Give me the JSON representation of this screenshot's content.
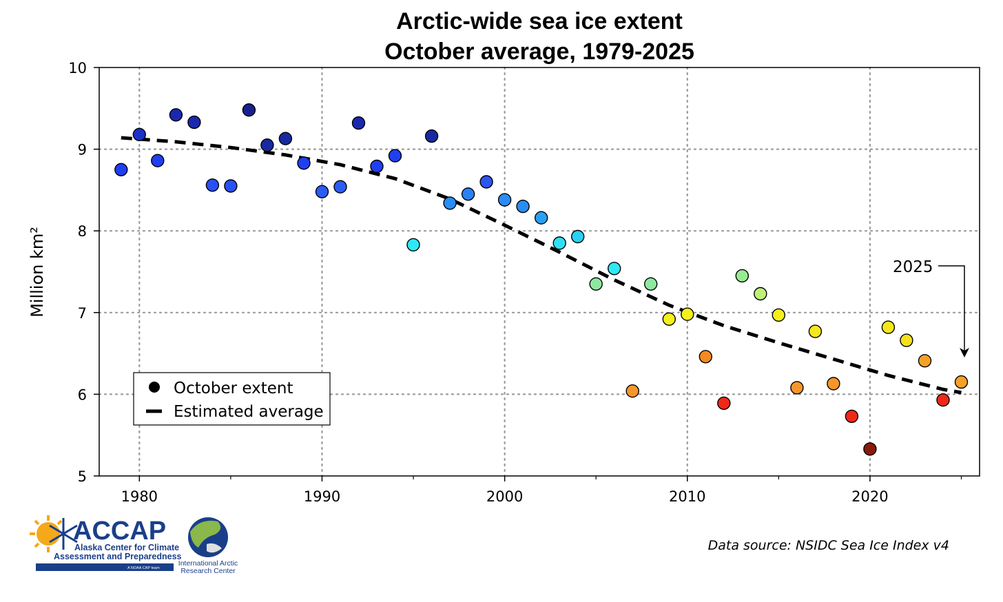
{
  "chart_data": {
    "type": "scatter",
    "title": [
      "Arctic-wide sea ice extent",
      "October average, 1979-2025"
    ],
    "xlabel": "",
    "ylabel": "Million km²",
    "xlim": [
      1977.8,
      2026
    ],
    "ylim": [
      5,
      10
    ],
    "x_ticks": [
      1980,
      1990,
      2000,
      2010,
      2020
    ],
    "y_ticks": [
      5,
      6,
      7,
      8,
      9,
      10
    ],
    "grid": "dotted",
    "legend_position": "lower-left",
    "legend": [
      {
        "label": "October extent",
        "marker": "circle"
      },
      {
        "label": "Estimated average",
        "marker": "dashed-line"
      }
    ],
    "series": [
      {
        "name": "October extent",
        "points": [
          {
            "x": 1979,
            "y": 8.75,
            "color": "#1f3ff0"
          },
          {
            "x": 1980,
            "y": 9.18,
            "color": "#1a30c8"
          },
          {
            "x": 1981,
            "y": 8.86,
            "color": "#1f3ff0"
          },
          {
            "x": 1982,
            "y": 9.42,
            "color": "#1a28b0"
          },
          {
            "x": 1983,
            "y": 9.33,
            "color": "#1a28b0"
          },
          {
            "x": 1984,
            "y": 8.56,
            "color": "#2850f5"
          },
          {
            "x": 1985,
            "y": 8.55,
            "color": "#2850f5"
          },
          {
            "x": 1986,
            "y": 9.48,
            "color": "#182090"
          },
          {
            "x": 1987,
            "y": 9.05,
            "color": "#182aa0"
          },
          {
            "x": 1988,
            "y": 9.13,
            "color": "#182aa0"
          },
          {
            "x": 1989,
            "y": 8.83,
            "color": "#1f3ff0"
          },
          {
            "x": 1990,
            "y": 8.48,
            "color": "#2a5cf5"
          },
          {
            "x": 1991,
            "y": 8.54,
            "color": "#2a5cf5"
          },
          {
            "x": 1992,
            "y": 9.32,
            "color": "#1a28b0"
          },
          {
            "x": 1993,
            "y": 8.79,
            "color": "#1f3ff0"
          },
          {
            "x": 1994,
            "y": 8.92,
            "color": "#1f3ff0"
          },
          {
            "x": 1995,
            "y": 7.83,
            "color": "#2ee8f5"
          },
          {
            "x": 1996,
            "y": 9.16,
            "color": "#182aa0"
          },
          {
            "x": 1997,
            "y": 8.34,
            "color": "#2a8cf5"
          },
          {
            "x": 1998,
            "y": 8.45,
            "color": "#2a80f5"
          },
          {
            "x": 1999,
            "y": 8.6,
            "color": "#2a55f0"
          },
          {
            "x": 2000,
            "y": 8.38,
            "color": "#2a8cf5"
          },
          {
            "x": 2001,
            "y": 8.3,
            "color": "#2a8cf5"
          },
          {
            "x": 2002,
            "y": 8.16,
            "color": "#2aa0f5"
          },
          {
            "x": 2003,
            "y": 7.85,
            "color": "#2ee0f5"
          },
          {
            "x": 2004,
            "y": 7.93,
            "color": "#2ad0f5"
          },
          {
            "x": 2005,
            "y": 7.35,
            "color": "#8ee8a0"
          },
          {
            "x": 2006,
            "y": 7.54,
            "color": "#2ee8f5"
          },
          {
            "x": 2007,
            "y": 6.04,
            "color": "#f5962a"
          },
          {
            "x": 2008,
            "y": 7.35,
            "color": "#8ee8a0"
          },
          {
            "x": 2009,
            "y": 6.92,
            "color": "#f5f01a"
          },
          {
            "x": 2010,
            "y": 6.98,
            "color": "#f5f01a"
          },
          {
            "x": 2011,
            "y": 6.46,
            "color": "#f58a20"
          },
          {
            "x": 2012,
            "y": 5.89,
            "color": "#f02818"
          },
          {
            "x": 2013,
            "y": 7.45,
            "color": "#96ec90"
          },
          {
            "x": 2014,
            "y": 7.23,
            "color": "#bef078"
          },
          {
            "x": 2015,
            "y": 6.97,
            "color": "#f5f01a"
          },
          {
            "x": 2016,
            "y": 6.08,
            "color": "#f5962a"
          },
          {
            "x": 2017,
            "y": 6.77,
            "color": "#f5e81a"
          },
          {
            "x": 2018,
            "y": 6.13,
            "color": "#f5962a"
          },
          {
            "x": 2019,
            "y": 5.73,
            "color": "#f02818"
          },
          {
            "x": 2020,
            "y": 5.33,
            "color": "#8a1a0a"
          },
          {
            "x": 2021,
            "y": 6.82,
            "color": "#f5e81a"
          },
          {
            "x": 2022,
            "y": 6.66,
            "color": "#f5e01a"
          },
          {
            "x": 2023,
            "y": 6.41,
            "color": "#f5a028"
          },
          {
            "x": 2024,
            "y": 5.93,
            "color": "#f02818"
          },
          {
            "x": 2025,
            "y": 6.15,
            "color": "#f5a028"
          }
        ]
      },
      {
        "name": "Estimated average",
        "style": "dashed",
        "x": [
          1979,
          1982,
          1985,
          1988,
          1991,
          1994,
          1997,
          2000,
          2003,
          2006,
          2009,
          2012,
          2015,
          2018,
          2021,
          2024,
          2025
        ],
        "y": [
          9.14,
          9.09,
          9.02,
          8.93,
          8.81,
          8.64,
          8.39,
          8.07,
          7.74,
          7.4,
          7.09,
          6.84,
          6.63,
          6.43,
          6.23,
          6.06,
          6.02
        ]
      }
    ],
    "annotations": [
      {
        "text": "2025",
        "target_x": 2025,
        "target_y": 6.15
      }
    ]
  },
  "footer": {
    "source": "Data source: NSIDC Sea Ice Index v4",
    "accap_title": "ACCAP",
    "accap_line1": "Alaska Center for Climate",
    "accap_line2": "Assessment and Preparedness",
    "accap_tag": "A NOAA CAP team",
    "iarc_line1": "International Arctic",
    "iarc_line2": "Research Center"
  },
  "colors": {
    "grid": "#999999",
    "axis": "#000000",
    "logo_blue": "#1a3f8a",
    "sun": "#f5a81a"
  }
}
